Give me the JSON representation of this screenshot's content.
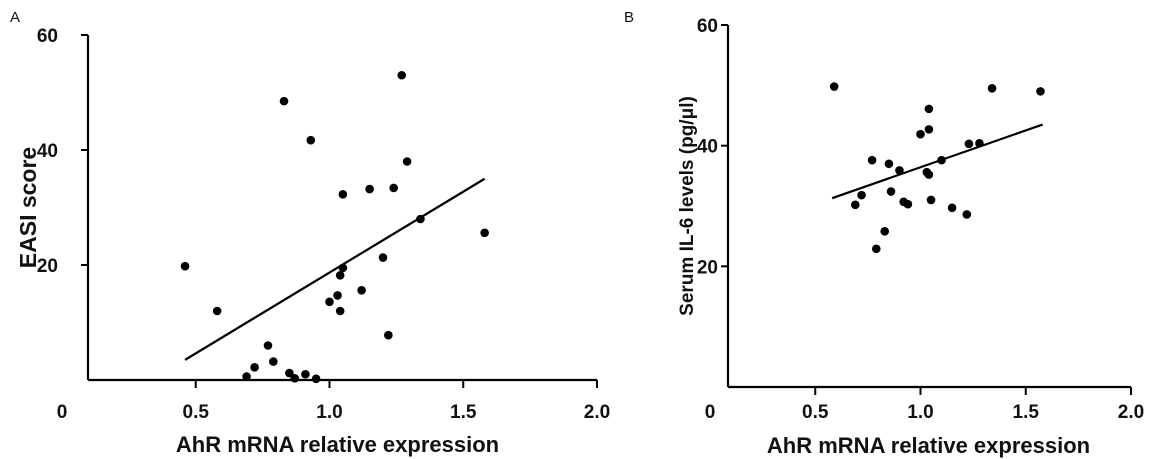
{
  "chart_data": [
    {
      "type": "scatter",
      "panel_label": "A",
      "xlabel": "AhR mRNA relative expression",
      "ylabel": "EASI score",
      "xlim": [
        0,
        2.0
      ],
      "ylim": [
        0,
        60
      ],
      "x_ticks": [
        0,
        0.5,
        1.0,
        1.5,
        2.0
      ],
      "x_tick_labels": [
        "0",
        "0.5",
        "1.0",
        "1.5",
        "2.0"
      ],
      "y_ticks": [
        20,
        40,
        60
      ],
      "y_tick_labels": [
        "20",
        "40",
        "60"
      ],
      "points": [
        {
          "x": 0.46,
          "y": 19.8
        },
        {
          "x": 0.58,
          "y": 12.0
        },
        {
          "x": 0.69,
          "y": 0.6
        },
        {
          "x": 0.72,
          "y": 2.2
        },
        {
          "x": 0.77,
          "y": 6.0
        },
        {
          "x": 0.79,
          "y": 3.2
        },
        {
          "x": 0.83,
          "y": 48.5
        },
        {
          "x": 0.85,
          "y": 1.2
        },
        {
          "x": 0.87,
          "y": 0.3
        },
        {
          "x": 0.91,
          "y": 1.0
        },
        {
          "x": 0.93,
          "y": 41.7
        },
        {
          "x": 0.95,
          "y": 0.2
        },
        {
          "x": 1.0,
          "y": 13.6
        },
        {
          "x": 1.03,
          "y": 14.7
        },
        {
          "x": 1.04,
          "y": 12.0
        },
        {
          "x": 1.04,
          "y": 18.2
        },
        {
          "x": 1.05,
          "y": 19.5
        },
        {
          "x": 1.05,
          "y": 32.3
        },
        {
          "x": 1.12,
          "y": 15.6
        },
        {
          "x": 1.15,
          "y": 33.2
        },
        {
          "x": 1.2,
          "y": 21.3
        },
        {
          "x": 1.22,
          "y": 7.8
        },
        {
          "x": 1.24,
          "y": 33.4
        },
        {
          "x": 1.27,
          "y": 53.0
        },
        {
          "x": 1.29,
          "y": 38.0
        },
        {
          "x": 1.34,
          "y": 28.0
        },
        {
          "x": 1.58,
          "y": 25.6
        }
      ],
      "fit_line": {
        "x": [
          0.46,
          1.58
        ],
        "y": [
          3.5,
          35.0
        ]
      }
    },
    {
      "type": "scatter",
      "panel_label": "B",
      "xlabel": "AhR mRNA relative expression",
      "ylabel": "Serum IL-6 levels (pg/μl)",
      "xlim": [
        0,
        2.0
      ],
      "ylim": [
        0,
        60
      ],
      "x_ticks": [
        0,
        0.5,
        1.0,
        1.5,
        2.0
      ],
      "x_tick_labels": [
        "0",
        "0.5",
        "1.0",
        "1.5",
        "2.0"
      ],
      "y_ticks": [
        20,
        40,
        60
      ],
      "y_tick_labels": [
        "20",
        "40",
        "60"
      ],
      "points": [
        {
          "x": 0.59,
          "y": 49.8
        },
        {
          "x": 0.69,
          "y": 30.2
        },
        {
          "x": 0.72,
          "y": 31.8
        },
        {
          "x": 0.77,
          "y": 37.6
        },
        {
          "x": 0.79,
          "y": 22.9
        },
        {
          "x": 0.83,
          "y": 25.8
        },
        {
          "x": 0.85,
          "y": 37.0
        },
        {
          "x": 0.86,
          "y": 32.4
        },
        {
          "x": 0.9,
          "y": 35.9
        },
        {
          "x": 0.92,
          "y": 30.7
        },
        {
          "x": 0.94,
          "y": 30.3
        },
        {
          "x": 1.0,
          "y": 41.9
        },
        {
          "x": 1.03,
          "y": 35.6
        },
        {
          "x": 1.04,
          "y": 35.2
        },
        {
          "x": 1.04,
          "y": 42.7
        },
        {
          "x": 1.04,
          "y": 46.1
        },
        {
          "x": 1.05,
          "y": 31.0
        },
        {
          "x": 1.1,
          "y": 37.6
        },
        {
          "x": 1.15,
          "y": 29.7
        },
        {
          "x": 1.22,
          "y": 28.6
        },
        {
          "x": 1.23,
          "y": 40.3
        },
        {
          "x": 1.28,
          "y": 40.4
        },
        {
          "x": 1.34,
          "y": 49.5
        },
        {
          "x": 1.57,
          "y": 49.0
        }
      ],
      "fit_line": {
        "x": [
          0.58,
          1.58
        ],
        "y": [
          31.3,
          43.5
        ]
      }
    }
  ]
}
